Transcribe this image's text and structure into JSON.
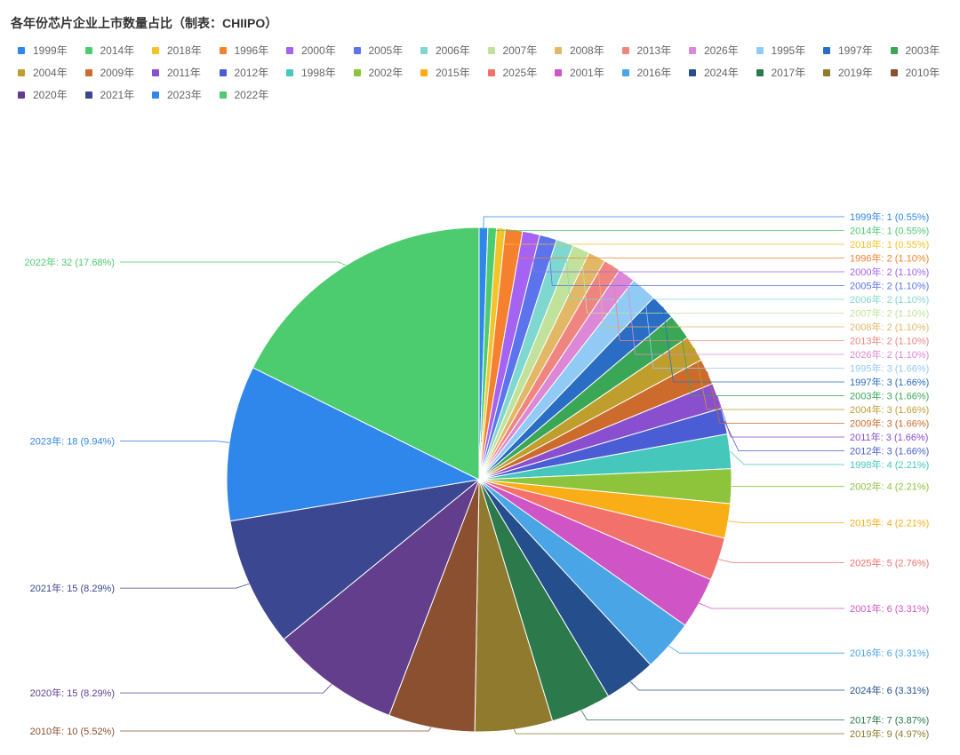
{
  "chart_data": {
    "type": "pie",
    "title": "各年份芯片企业上市数量占比（制表：CHIIPO）",
    "legend_position": "top",
    "categories": [
      "1999年",
      "2014年",
      "2018年",
      "1996年",
      "2000年",
      "2005年",
      "2006年",
      "2007年",
      "2008年",
      "2013年",
      "2026年",
      "1995年",
      "1997年",
      "2003年",
      "2004年",
      "2009年",
      "2011年",
      "2012年",
      "1998年",
      "2002年",
      "2015年",
      "2025年",
      "2001年",
      "2016年",
      "2024年",
      "2017年",
      "2019年",
      "2010年",
      "2020年",
      "2021年",
      "2023年",
      "2022年"
    ],
    "values": [
      1,
      1,
      1,
      2,
      2,
      2,
      2,
      2,
      2,
      2,
      2,
      3,
      3,
      3,
      3,
      3,
      3,
      3,
      4,
      4,
      4,
      5,
      6,
      6,
      6,
      7,
      9,
      10,
      15,
      15,
      18,
      32
    ],
    "labels": [
      "1999年: 1 (0.55%)",
      "2014年: 1 (0.55%)",
      "2018年: 1 (0.55%)",
      "1996年: 2 (1.10%)",
      "2000年: 2 (1.10%)",
      "2005年: 2 (1.10%)",
      "2006年: 2 (1.10%)",
      "2007年: 2 (1.10%)",
      "2008年: 2 (1.10%)",
      "2013年: 2 (1.10%)",
      "2026年: 2 (1.10%)",
      "1995年: 3 (1.66%)",
      "1997年: 3 (1.66%)",
      "2003年: 3 (1.66%)",
      "2004年: 3 (1.66%)",
      "2009年: 3 (1.66%)",
      "2011年: 3 (1.66%)",
      "2012年: 3 (1.66%)",
      "1998年: 4 (2.21%)",
      "2002年: 4 (2.21%)",
      "2015年: 4 (2.21%)",
      "2025年: 5 (2.76%)",
      "2001年: 6 (3.31%)",
      "2016年: 6 (3.31%)",
      "2024年: 6 (3.31%)",
      "2017年: 7 (3.87%)",
      "2019年: 9 (4.97%)",
      "2010年: 10 (5.52%)",
      "2020年: 15 (8.29%)",
      "2021年: 15 (8.29%)",
      "2023年: 18 (9.94%)",
      "2022年: 32 (17.68%)"
    ],
    "colors": [
      "#2f86eb",
      "#4dcb6f",
      "#f5c228",
      "#f5812f",
      "#a463f2",
      "#5b73ec",
      "#7ed8d0",
      "#c0e29a",
      "#e2b867",
      "#f0857f",
      "#dd88d6",
      "#92caf6",
      "#2a6dc4",
      "#3aa757",
      "#bf9e2e",
      "#cd6b2c",
      "#8a4fce",
      "#4b5dd4",
      "#45c8bb",
      "#8dc43b",
      "#f9ad17",
      "#f2716b",
      "#cf55c7",
      "#49a5e6",
      "#244f8c",
      "#2c7a4b",
      "#8f7a2d",
      "#8a5030",
      "#633e8d",
      "#3b4891",
      "#2f86eb",
      "#4dcb6f"
    ]
  }
}
